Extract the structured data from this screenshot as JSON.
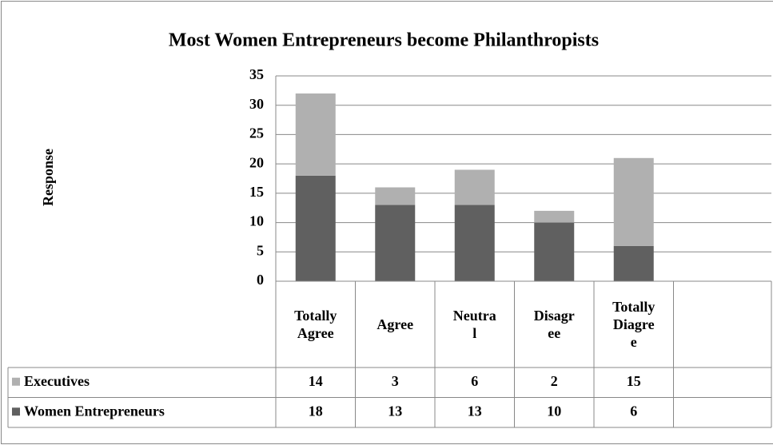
{
  "chart_data": {
    "type": "bar",
    "stacked": true,
    "title": "Most Women Entrepreneurs become Philanthropists",
    "y_label": "Response",
    "categories": [
      "Totally Agree",
      "Agree",
      "Neutral",
      "Disagree",
      "Totally Diagree",
      null
    ],
    "series": [
      {
        "name": "Women Entrepreneurs",
        "color": "#606060",
        "values": [
          18,
          13,
          13,
          10,
          6,
          null
        ]
      },
      {
        "name": "Executives",
        "color": "#b0b0b0",
        "values": [
          14,
          3,
          6,
          2,
          15,
          null
        ]
      }
    ],
    "ylim": [
      0,
      35
    ],
    "yticks": [
      0,
      5,
      10,
      15,
      20,
      25,
      30,
      35
    ],
    "grid": true,
    "data_table": true
  }
}
